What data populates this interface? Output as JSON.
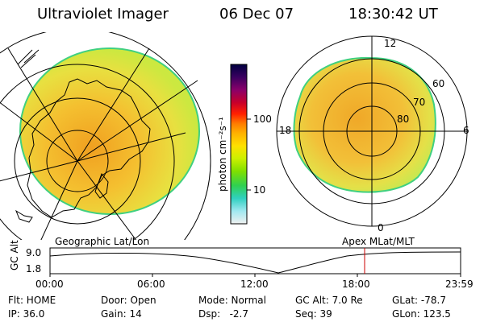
{
  "header": {
    "title": "Ultraviolet Imager",
    "date": "06 Dec 07",
    "time": "18:30:42 UT"
  },
  "colorbar": {
    "unit_label": "photon cm⁻²s⁻¹",
    "ticks": [
      "100",
      "10"
    ],
    "colors": [
      "#000040",
      "#3a0060",
      "#8a006a",
      "#c8002a",
      "#ff2000",
      "#ff7a00",
      "#ffb000",
      "#ffe000",
      "#ccf000",
      "#80e000",
      "#30d050",
      "#30d0c0",
      "#a0e8f0",
      "#f0f0f0"
    ]
  },
  "geo_panel": {
    "caption": "Geographic Lat/Lon"
  },
  "polar_panel": {
    "caption": "Apex  MLat/MLT",
    "mlt_labels": {
      "top": "12",
      "bottom": "0",
      "left": "18",
      "right": "6"
    },
    "lat_labels": [
      "60",
      "70",
      "80"
    ]
  },
  "altitude_plot": {
    "ylabel": "GC Alt",
    "yticks": [
      "9.0",
      "1.8"
    ],
    "xticks": [
      "00:00",
      "06:00",
      "12:00",
      "18:00",
      "23:59"
    ],
    "marker_time": "18:30:42",
    "marker_color": "#cc0000"
  },
  "status": {
    "flt": "Flt: HOME",
    "ip": "IP: 36.0",
    "door": "Door: Open",
    "gain": "Gain: 14",
    "mode": "Mode: Normal",
    "dsp": "Dsp:   -2.7",
    "gc_alt": "GC Alt: 7.0 Re",
    "seq": "Seq: 39",
    "glat": "GLat: -78.7",
    "glon": "GLon: 123.5"
  }
}
